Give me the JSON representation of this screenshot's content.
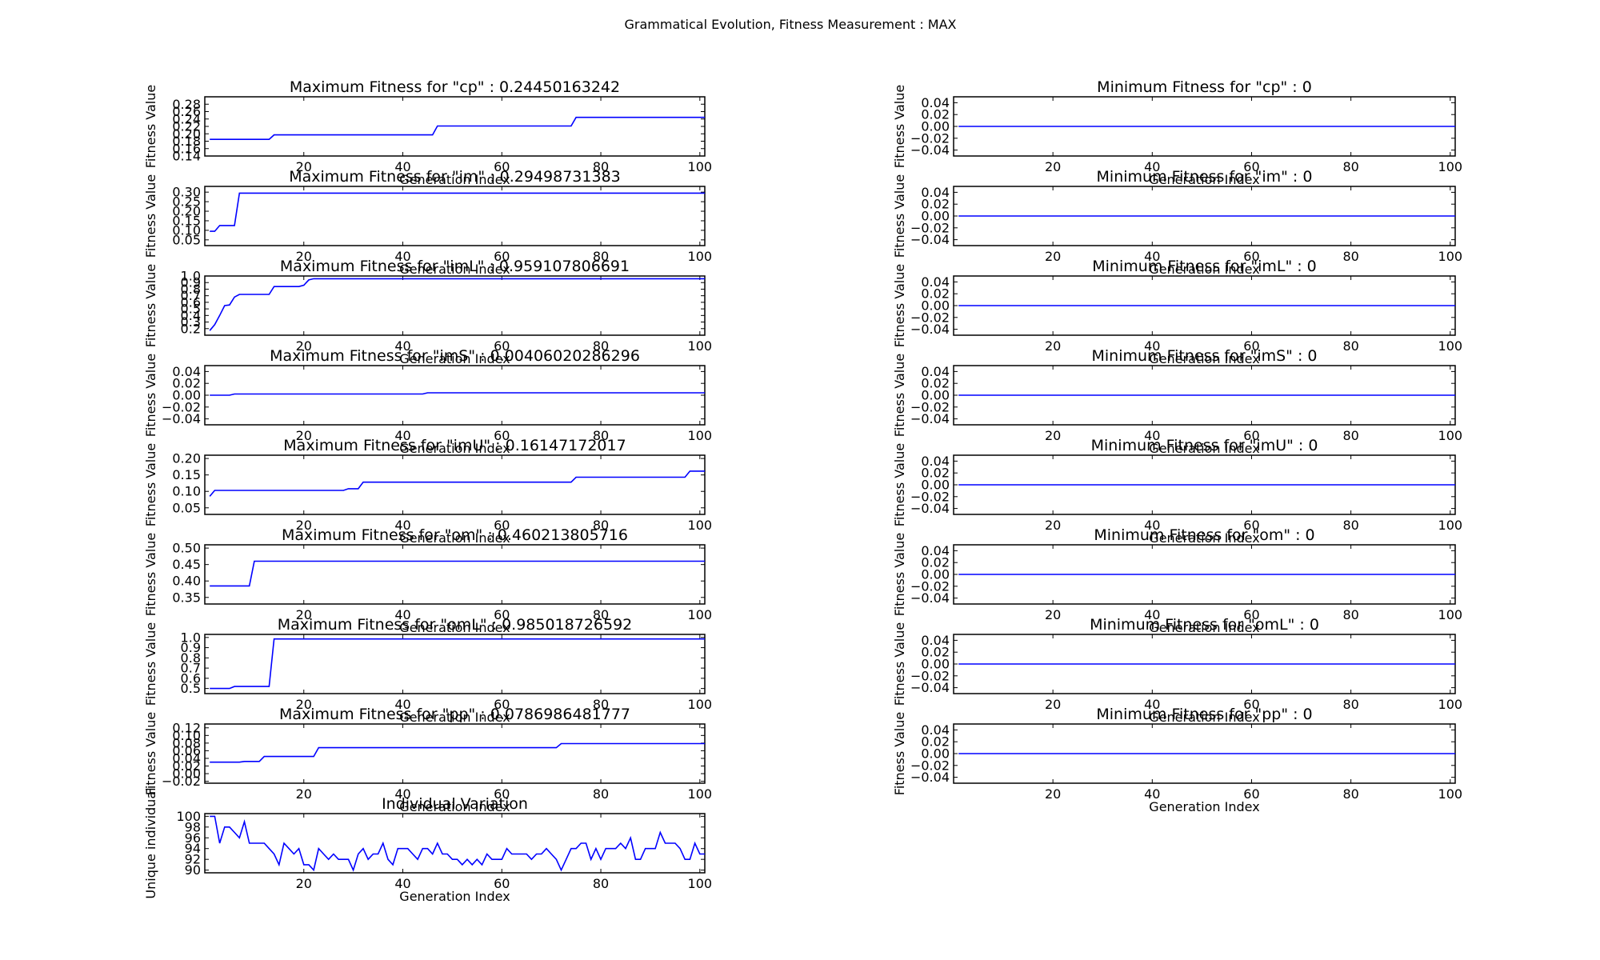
{
  "figure_title": "Grammatical Evolution, Fitness Measurement : MAX",
  "chart_data": [
    {
      "type": "line",
      "title": "Maximum Fitness for \"cp\" : 0.24450163242",
      "xlabel": "Generation Index",
      "ylabel": "Fitness Value",
      "xlim": [
        0,
        101
      ],
      "ylim": [
        0.14,
        0.3
      ],
      "xticks": [
        20,
        40,
        60,
        80,
        100
      ],
      "yticks": [
        0.14,
        0.16,
        0.18,
        0.2,
        0.22,
        0.24,
        0.26,
        0.28
      ],
      "yformat": 2,
      "x": [
        1,
        13,
        14,
        46,
        47,
        74,
        75,
        101
      ],
      "y": [
        0.185,
        0.185,
        0.197,
        0.197,
        0.221,
        0.221,
        0.2445,
        0.2445
      ]
    },
    {
      "type": "line",
      "title": "Minimum Fitness for \"cp\" : 0",
      "xlabel": "Generation Index",
      "ylabel": "Fitness Value",
      "xlim": [
        0,
        101
      ],
      "ylim": [
        -0.05,
        0.05
      ],
      "xticks": [
        20,
        40,
        60,
        80,
        100
      ],
      "yticks": [
        0.04,
        0.02,
        0.0,
        -0.02,
        -0.04
      ],
      "yformat": 2,
      "x": [
        1,
        101
      ],
      "y": [
        0,
        0
      ]
    },
    {
      "type": "line",
      "title": "Maximum Fitness for \"im\" : 0.29498731383",
      "xlabel": "Generation Index",
      "ylabel": "Fitness Value",
      "xlim": [
        0,
        101
      ],
      "ylim": [
        0.02,
        0.33
      ],
      "xticks": [
        20,
        40,
        60,
        80,
        100
      ],
      "yticks": [
        0.05,
        0.1,
        0.15,
        0.2,
        0.25,
        0.3
      ],
      "yformat": 2,
      "x": [
        1,
        2,
        3,
        4,
        5,
        6,
        7,
        8,
        101
      ],
      "y": [
        0.095,
        0.095,
        0.125,
        0.125,
        0.125,
        0.125,
        0.295,
        0.295,
        0.295
      ]
    },
    {
      "type": "line",
      "title": "Minimum Fitness for \"im\" : 0",
      "xlabel": "Generation Index",
      "ylabel": "Fitness Value",
      "xlim": [
        0,
        101
      ],
      "ylim": [
        -0.05,
        0.05
      ],
      "xticks": [
        20,
        40,
        60,
        80,
        100
      ],
      "yticks": [
        0.04,
        0.02,
        0.0,
        -0.02,
        -0.04
      ],
      "yformat": 2,
      "x": [
        1,
        101
      ],
      "y": [
        0,
        0
      ]
    },
    {
      "type": "line",
      "title": "Maximum Fitness for \"imL\" : 0.959107806691",
      "xlabel": "Generation Index",
      "ylabel": "Fitness Value",
      "xlim": [
        0,
        101
      ],
      "ylim": [
        0.1,
        1.0
      ],
      "xticks": [
        20,
        40,
        60,
        80,
        100
      ],
      "yticks": [
        0.2,
        0.3,
        0.4,
        0.5,
        0.6,
        0.7,
        0.8,
        0.9,
        1.0
      ],
      "yformat": 1,
      "x": [
        1,
        2,
        3,
        4,
        5,
        6,
        7,
        13,
        14,
        19,
        20,
        21,
        22,
        101
      ],
      "y": [
        0.17,
        0.26,
        0.4,
        0.55,
        0.56,
        0.68,
        0.72,
        0.72,
        0.84,
        0.84,
        0.86,
        0.94,
        0.959,
        0.959
      ]
    },
    {
      "type": "line",
      "title": "Minimum Fitness for \"imL\" : 0",
      "xlabel": "Generation Index",
      "ylabel": "Fitness Value",
      "xlim": [
        0,
        101
      ],
      "ylim": [
        -0.05,
        0.05
      ],
      "xticks": [
        20,
        40,
        60,
        80,
        100
      ],
      "yticks": [
        0.04,
        0.02,
        0.0,
        -0.02,
        -0.04
      ],
      "yformat": 2,
      "x": [
        1,
        101
      ],
      "y": [
        0,
        0
      ]
    },
    {
      "type": "line",
      "title": "Maximum Fitness for \"imS\" : 0.00406020286296",
      "xlabel": "Generation Index",
      "ylabel": "Fitness Value",
      "xlim": [
        0,
        101
      ],
      "ylim": [
        -0.05,
        0.05
      ],
      "xticks": [
        20,
        40,
        60,
        80,
        100
      ],
      "yticks": [
        0.04,
        0.02,
        0.0,
        -0.02,
        -0.04
      ],
      "yformat": 2,
      "x": [
        1,
        5,
        6,
        44,
        45,
        101
      ],
      "y": [
        0.0,
        0.0,
        0.002,
        0.002,
        0.00406,
        0.00406
      ]
    },
    {
      "type": "line",
      "title": "Minimum Fitness for \"imS\" : 0",
      "xlabel": "Generation Index",
      "ylabel": "Fitness Value",
      "xlim": [
        0,
        101
      ],
      "ylim": [
        -0.05,
        0.05
      ],
      "xticks": [
        20,
        40,
        60,
        80,
        100
      ],
      "yticks": [
        0.04,
        0.02,
        0.0,
        -0.02,
        -0.04
      ],
      "yformat": 2,
      "x": [
        1,
        101
      ],
      "y": [
        0,
        0
      ]
    },
    {
      "type": "line",
      "title": "Maximum Fitness for \"imU\" : 0.16147172017",
      "xlabel": "Generation Index",
      "ylabel": "Fitness Value",
      "xlim": [
        0,
        101
      ],
      "ylim": [
        0.03,
        0.21
      ],
      "xticks": [
        20,
        40,
        60,
        80,
        100
      ],
      "yticks": [
        0.05,
        0.1,
        0.15,
        0.2
      ],
      "yformat": 2,
      "x": [
        1,
        2,
        28,
        29,
        31,
        32,
        74,
        75,
        97,
        98,
        101
      ],
      "y": [
        0.085,
        0.103,
        0.103,
        0.108,
        0.108,
        0.128,
        0.128,
        0.143,
        0.143,
        0.1615,
        0.1615
      ]
    },
    {
      "type": "line",
      "title": "Minimum Fitness for \"imU\" : 0",
      "xlabel": "Generation Index",
      "ylabel": "Fitness Value",
      "xlim": [
        0,
        101
      ],
      "ylim": [
        -0.05,
        0.05
      ],
      "xticks": [
        20,
        40,
        60,
        80,
        100
      ],
      "yticks": [
        0.04,
        0.02,
        0.0,
        -0.02,
        -0.04
      ],
      "yformat": 2,
      "x": [
        1,
        101
      ],
      "y": [
        0,
        0
      ]
    },
    {
      "type": "line",
      "title": "Maximum Fitness for \"om\" : 0.460213805716",
      "xlabel": "Generation Index",
      "ylabel": "Fitness Value",
      "xlim": [
        0,
        101
      ],
      "ylim": [
        0.33,
        0.51
      ],
      "xticks": [
        20,
        40,
        60,
        80,
        100
      ],
      "yticks": [
        0.35,
        0.4,
        0.45,
        0.5
      ],
      "yformat": 2,
      "x": [
        1,
        9,
        10,
        101
      ],
      "y": [
        0.385,
        0.385,
        0.4602,
        0.4602
      ]
    },
    {
      "type": "line",
      "title": "Minimum Fitness for \"om\" : 0",
      "xlabel": "Generation Index",
      "ylabel": "Fitness Value",
      "xlim": [
        0,
        101
      ],
      "ylim": [
        -0.05,
        0.05
      ],
      "xticks": [
        20,
        40,
        60,
        80,
        100
      ],
      "yticks": [
        0.04,
        0.02,
        0.0,
        -0.02,
        -0.04
      ],
      "yformat": 2,
      "x": [
        1,
        101
      ],
      "y": [
        0,
        0
      ]
    },
    {
      "type": "line",
      "title": "Maximum Fitness for \"omL\" : 0.985018726592",
      "xlabel": "Generation Index",
      "ylabel": "Fitness Value",
      "xlim": [
        0,
        101
      ],
      "ylim": [
        0.45,
        1.03
      ],
      "xticks": [
        20,
        40,
        60,
        80,
        100
      ],
      "yticks": [
        0.5,
        0.6,
        0.7,
        0.8,
        0.9,
        1.0
      ],
      "yformat": 1,
      "x": [
        1,
        5,
        6,
        13,
        14,
        101
      ],
      "y": [
        0.5,
        0.5,
        0.52,
        0.52,
        0.985,
        0.985
      ]
    },
    {
      "type": "line",
      "title": "Minimum Fitness for \"omL\" : 0",
      "xlabel": "Generation Index",
      "ylabel": "Fitness Value",
      "xlim": [
        0,
        101
      ],
      "ylim": [
        -0.05,
        0.05
      ],
      "xticks": [
        20,
        40,
        60,
        80,
        100
      ],
      "yticks": [
        0.04,
        0.02,
        0.0,
        -0.02,
        -0.04
      ],
      "yformat": 2,
      "x": [
        1,
        101
      ],
      "y": [
        0,
        0
      ]
    },
    {
      "type": "line",
      "title": "Maximum Fitness for \"pp\" : 0.0786986481777",
      "xlabel": "Generation Index",
      "ylabel": "Fitness Value",
      "xlim": [
        0,
        101
      ],
      "ylim": [
        -0.025,
        0.13
      ],
      "xticks": [
        20,
        40,
        60,
        80,
        100
      ],
      "yticks": [
        -0.02,
        0.0,
        0.02,
        0.04,
        0.06,
        0.08,
        0.1,
        0.12
      ],
      "yformat": 2,
      "x": [
        1,
        7,
        8,
        11,
        12,
        22,
        23,
        71,
        72,
        101
      ],
      "y": [
        0.03,
        0.03,
        0.032,
        0.032,
        0.045,
        0.045,
        0.068,
        0.068,
        0.0787,
        0.0787
      ]
    },
    {
      "type": "line",
      "title": "Minimum Fitness for \"pp\" : 0",
      "xlabel": "Generation Index",
      "ylabel": "Fitness Value",
      "xlim": [
        0,
        101
      ],
      "ylim": [
        -0.05,
        0.05
      ],
      "xticks": [
        20,
        40,
        60,
        80,
        100
      ],
      "yticks": [
        0.04,
        0.02,
        0.0,
        -0.02,
        -0.04
      ],
      "yformat": 2,
      "x": [
        1,
        101
      ],
      "y": [
        0,
        0
      ]
    },
    {
      "type": "line",
      "title": "Individual Variation",
      "xlabel": "Generation Index",
      "ylabel": "Unique individual",
      "xlim": [
        0,
        101
      ],
      "ylim": [
        89.5,
        100.5
      ],
      "xticks": [
        20,
        40,
        60,
        80,
        100
      ],
      "yticks": [
        90,
        92,
        94,
        96,
        98,
        100
      ],
      "yformat": 0,
      "x": [
        1,
        2,
        3,
        4,
        5,
        6,
        7,
        8,
        9,
        10,
        11,
        12,
        13,
        14,
        15,
        16,
        17,
        18,
        19,
        20,
        21,
        22,
        23,
        24,
        25,
        26,
        27,
        28,
        29,
        30,
        31,
        32,
        33,
        34,
        35,
        36,
        37,
        38,
        39,
        40,
        41,
        42,
        43,
        44,
        45,
        46,
        47,
        48,
        49,
        50,
        51,
        52,
        53,
        54,
        55,
        56,
        57,
        58,
        59,
        60,
        61,
        62,
        63,
        64,
        65,
        66,
        67,
        68,
        69,
        70,
        71,
        72,
        73,
        74,
        75,
        76,
        77,
        78,
        79,
        80,
        81,
        82,
        83,
        84,
        85,
        86,
        87,
        88,
        89,
        90,
        91,
        92,
        93,
        94,
        95,
        96,
        97,
        98,
        99,
        100,
        101
      ],
      "y": [
        100,
        100,
        95,
        98,
        98,
        97,
        96,
        99,
        95,
        95,
        95,
        95,
        94,
        93,
        91,
        95,
        94,
        93,
        94,
        91,
        91,
        90,
        94,
        93,
        92,
        93,
        92,
        92,
        92,
        90,
        93,
        94,
        92,
        93,
        93,
        95,
        92,
        91,
        94,
        94,
        94,
        93,
        92,
        94,
        94,
        93,
        95,
        93,
        93,
        92,
        92,
        91,
        92,
        91,
        92,
        91,
        93,
        92,
        92,
        92,
        94,
        93,
        93,
        93,
        93,
        92,
        93,
        93,
        94,
        93,
        92,
        90,
        92,
        94,
        94,
        95,
        95,
        92,
        94,
        92,
        94,
        94,
        94,
        95,
        94,
        96,
        92,
        92,
        94,
        94,
        94,
        97,
        95,
        95,
        95,
        94,
        92,
        92,
        95,
        93,
        93
      ]
    }
  ]
}
